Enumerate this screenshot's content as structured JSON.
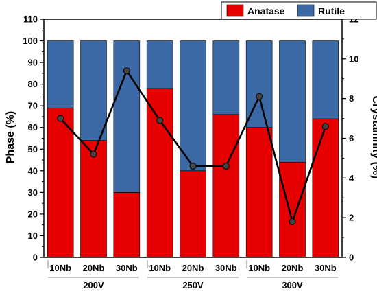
{
  "chart_data": {
    "type": "bar",
    "stacked": true,
    "categories": [
      "10Nb",
      "20Nb",
      "30Nb",
      "10Nb",
      "20Nb",
      "30Nb",
      "10Nb",
      "20Nb",
      "30Nb"
    ],
    "groups": [
      {
        "label": "200V",
        "categories": [
          0,
          1,
          2
        ]
      },
      {
        "label": "250V",
        "categories": [
          3,
          4,
          5
        ]
      },
      {
        "label": "300V",
        "categories": [
          6,
          7,
          8
        ]
      }
    ],
    "series": [
      {
        "name": "Anatase",
        "axis": "left",
        "color": "#e60000",
        "values": [
          69,
          54,
          30,
          78,
          40,
          66,
          60,
          44,
          64
        ]
      },
      {
        "name": "Rutile",
        "axis": "left",
        "color": "#3b69a6",
        "values": [
          31,
          46,
          70,
          22,
          60,
          34,
          40,
          56,
          36
        ]
      },
      {
        "type": "line",
        "axis": "right",
        "color": "#000000",
        "values": [
          7.0,
          5.2,
          9.4,
          6.9,
          4.6,
          4.6,
          8.1,
          1.8,
          6.6
        ]
      }
    ],
    "ylabel": "Phase (%)",
    "ylim": [
      0,
      110
    ],
    "yticks": [
      0,
      10,
      20,
      30,
      40,
      50,
      60,
      70,
      80,
      90,
      100,
      110
    ],
    "y2label": "Crystallinity (%)",
    "y2lim": [
      0,
      12
    ],
    "y2ticks": [
      0,
      2,
      4,
      6,
      8,
      10,
      12
    ],
    "legend": {
      "position": "top-right",
      "entries": [
        "Anatase",
        "Rutile"
      ]
    },
    "grid": false
  }
}
